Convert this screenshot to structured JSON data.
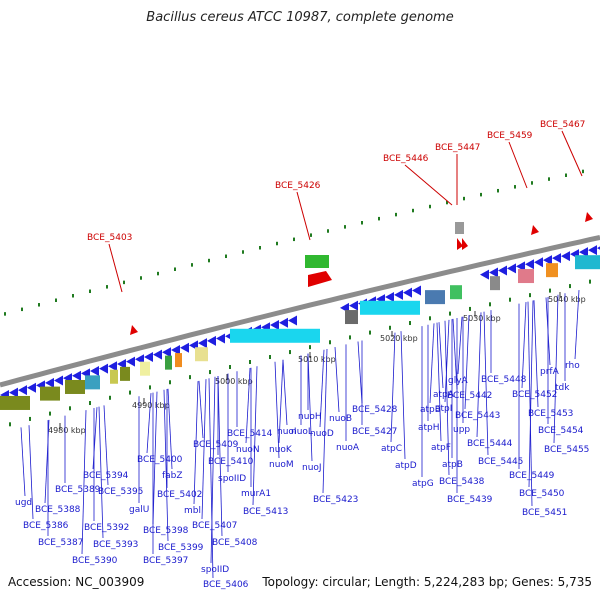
{
  "title": "Bacillus cereus ATCC 10987, complete genome",
  "footer": {
    "accession": "Accession: NC_003909",
    "topology": "Topology: circular; Length: 5,224,283 bp; Genes: 5,735"
  },
  "kbp_labels": [
    "4980 kbp",
    "4990 kbp",
    "5000 kbp",
    "5010 kbp",
    "5020 kbp",
    "5030 kbp",
    "5040 kbp"
  ],
  "red_labels": [
    "BCE_5403",
    "BCE_5426",
    "BCE_5446",
    "BCE_5447",
    "BCE_5459",
    "BCE_5467"
  ],
  "blue_labels": [
    "ugd",
    "BCE_5389",
    "BCE_5388",
    "BCE_5386",
    "BCE_5387",
    "BCE_5394",
    "BCE_5395",
    "BCE_5392",
    "BCE_5390",
    "BCE_5393",
    "galU",
    "BCE_5400",
    "fabZ",
    "BCE_5402",
    "BCE_5398",
    "BCE_5399",
    "BCE_5397",
    "mbl",
    "BCE_5409",
    "BCE_5410",
    "BCE_5407",
    "BCE_5408",
    "spoIID",
    "spoIID",
    "BCE_5406",
    "BCE_5414",
    "nuoN",
    "nuoM",
    "murA1",
    "BCE_5413",
    "nuoI",
    "nuoH",
    "nuoK",
    "nuoJ",
    "nuoL",
    "nuoD",
    "nuoB",
    "nuoA",
    "BCE_5423",
    "BCE_5428",
    "BCE_5427",
    "atpC",
    "atpD",
    "atpG",
    "atpE",
    "atpA",
    "atpH",
    "atpI",
    "atpF",
    "atpB",
    "glyA",
    "BCE_5442",
    "upp",
    "BCE_5443",
    "BCE_5438",
    "BCE_5439",
    "BCE_5444",
    "BCE_5445",
    "BCE_5448",
    "BCE_5452",
    "BCE_5453",
    "BCE_5449",
    "BCE_5450",
    "BCE_5451",
    "BCE_5454",
    "BCE_5455",
    "prfA",
    "tdk",
    "rho"
  ],
  "colors": {
    "backbone": "#8c8c8c",
    "gene_blue": "#1f1fe0",
    "label_blue": "#1a1acd",
    "label_red": "#cc0000",
    "tick_green": "#1f7a1f",
    "gene_cyan": "#1ad6ee",
    "gene_olive": "#7a8a1e"
  }
}
